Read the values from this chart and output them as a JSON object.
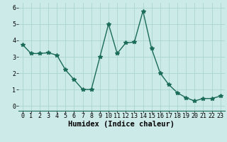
{
  "x": [
    0,
    1,
    2,
    3,
    4,
    5,
    6,
    7,
    8,
    9,
    10,
    11,
    12,
    13,
    14,
    15,
    16,
    17,
    18,
    19,
    20,
    21,
    22,
    23
  ],
  "y": [
    3.75,
    3.2,
    3.2,
    3.25,
    3.1,
    2.2,
    1.6,
    1.0,
    1.0,
    3.0,
    5.0,
    3.2,
    3.85,
    3.9,
    5.8,
    3.5,
    2.0,
    1.3,
    0.8,
    0.5,
    0.3,
    0.45,
    0.45,
    0.6
  ],
  "xlabel": "Humidex (Indice chaleur)",
  "xlim": [
    -0.5,
    23.5
  ],
  "ylim": [
    -0.3,
    6.3
  ],
  "yticks": [
    0,
    1,
    2,
    3,
    4,
    5,
    6
  ],
  "xticks": [
    0,
    1,
    2,
    3,
    4,
    5,
    6,
    7,
    8,
    9,
    10,
    11,
    12,
    13,
    14,
    15,
    16,
    17,
    18,
    19,
    20,
    21,
    22,
    23
  ],
  "line_color": "#1a6b5a",
  "marker": "*",
  "marker_size": 4,
  "bg_color": "#cceae8",
  "grid_color": "#aad4d0",
  "tick_label_fontsize": 6,
  "xlabel_fontsize": 7.5,
  "line_width": 1.0
}
